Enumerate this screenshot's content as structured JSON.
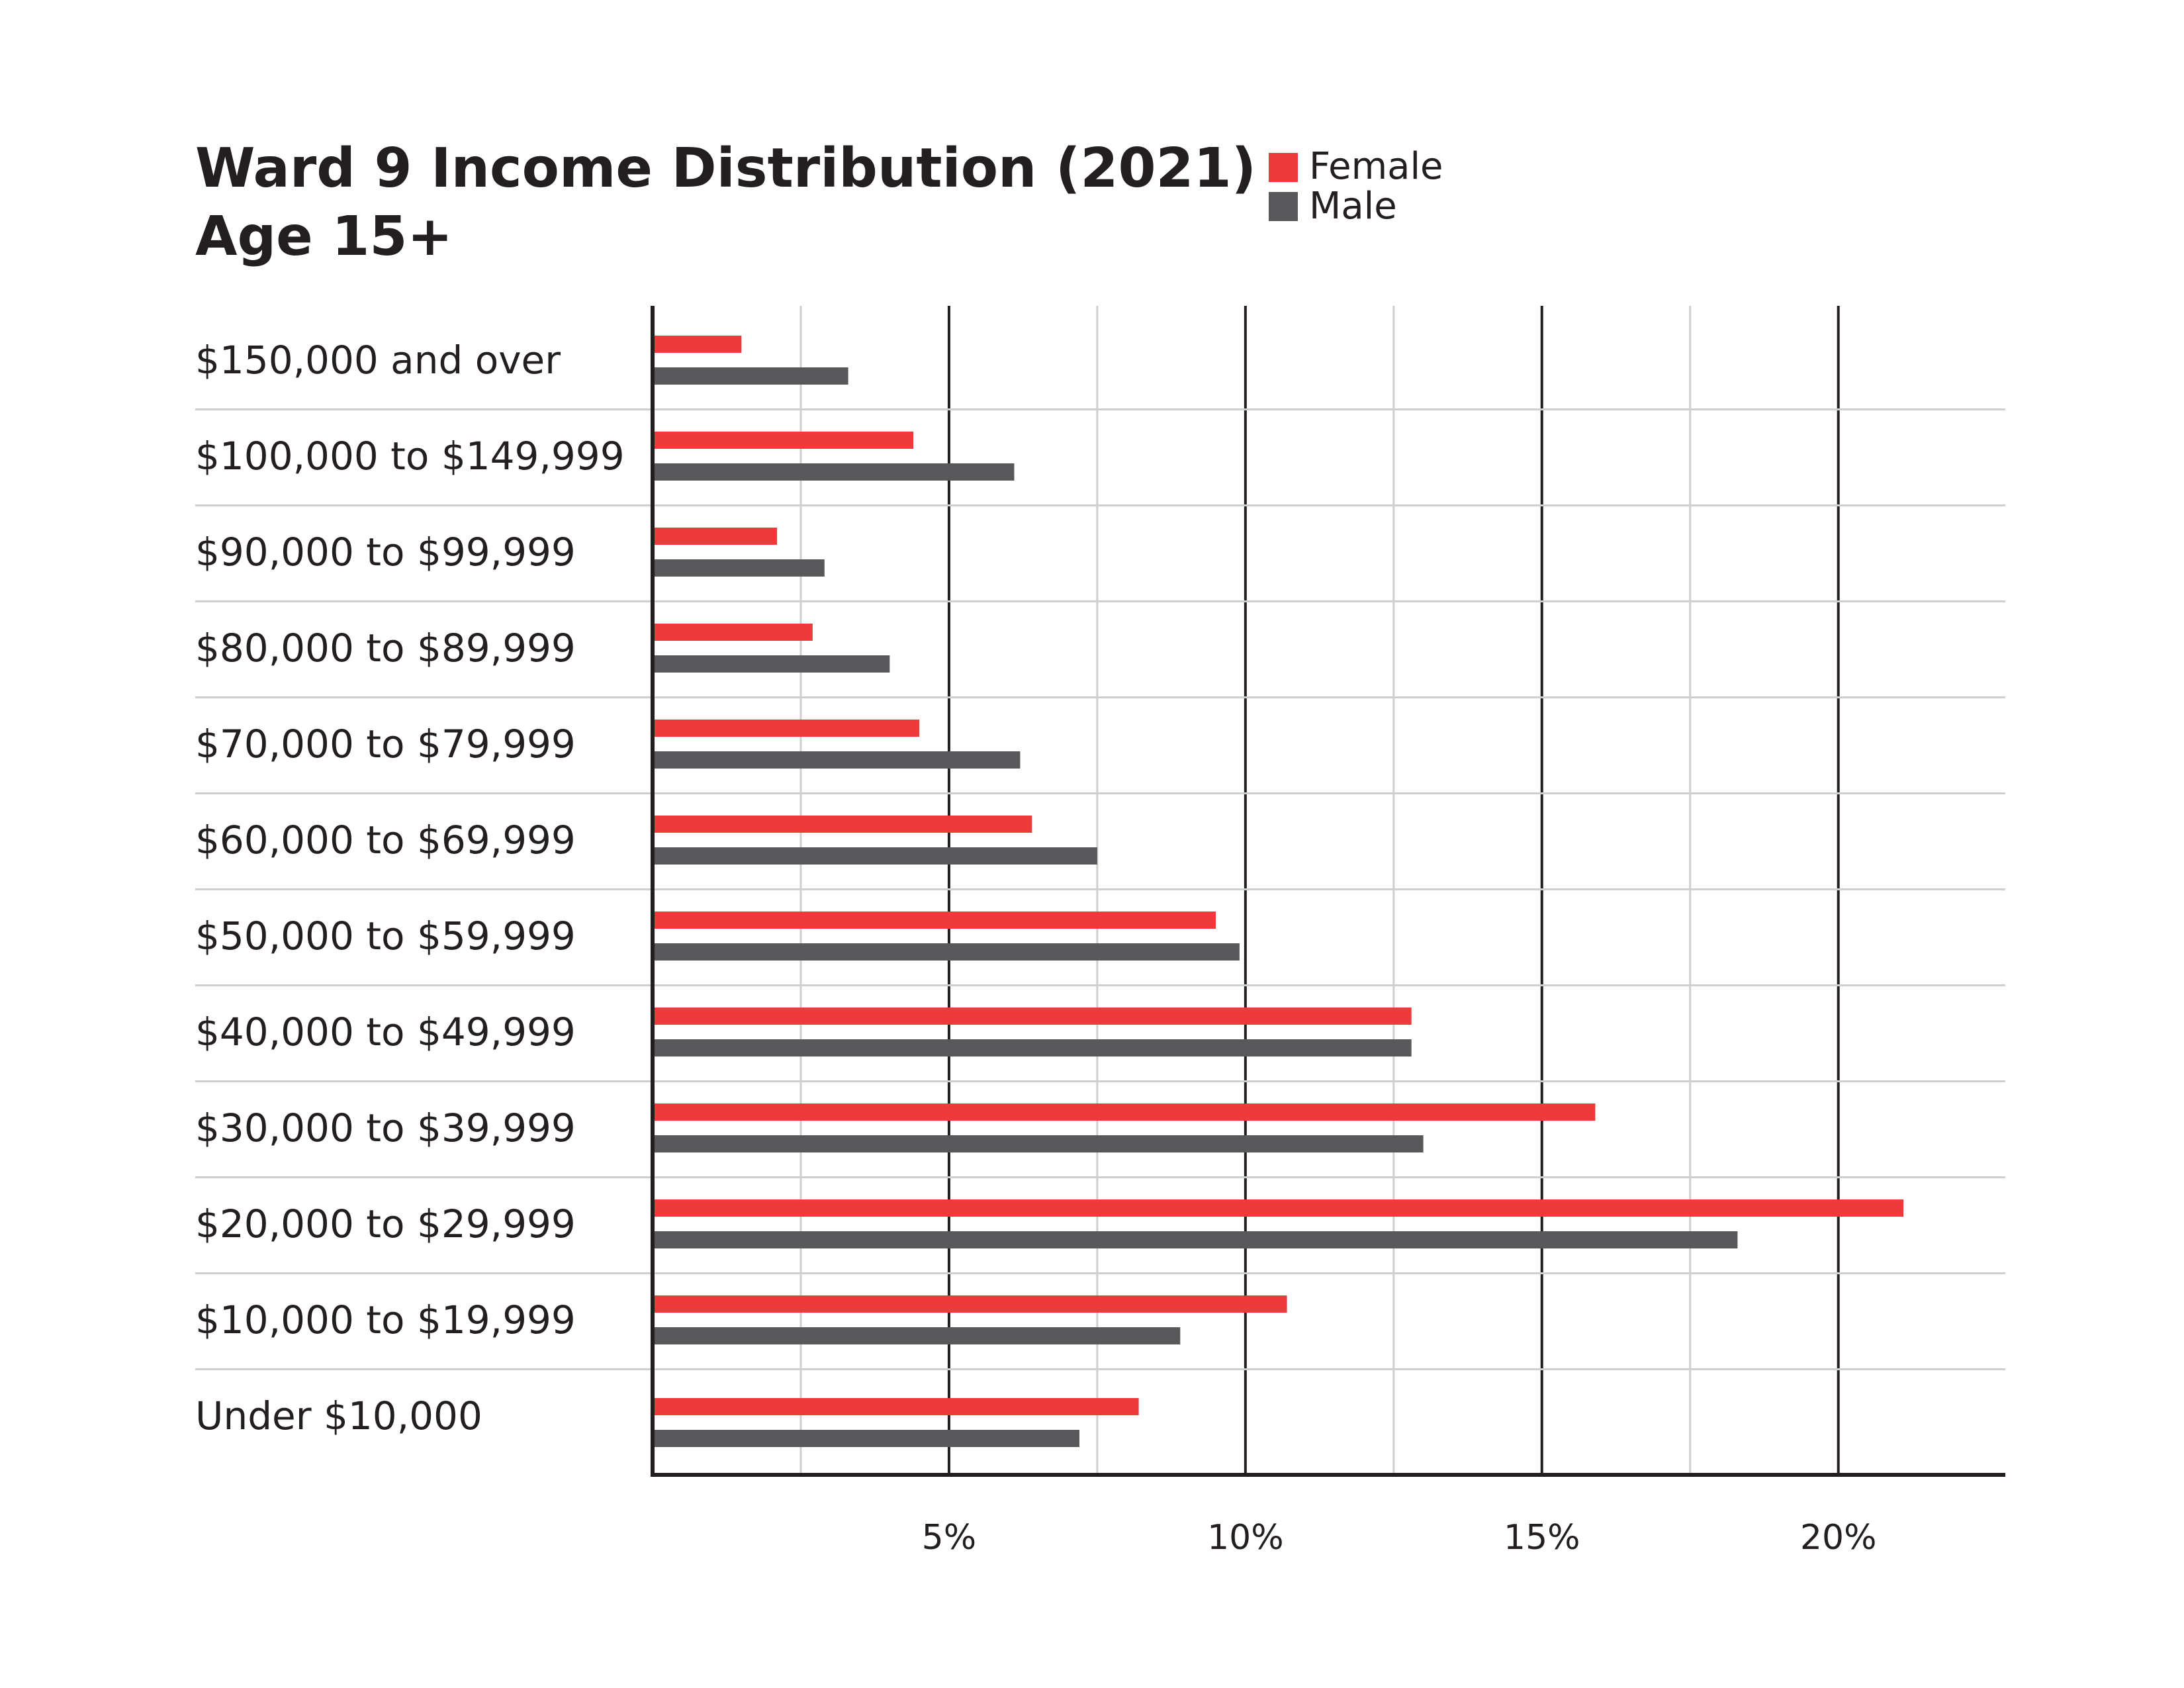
{
  "chart_data": {
    "type": "bar",
    "orientation": "horizontal",
    "title": "Ward 9 Income Distribution (2021)",
    "subtitle": "Age 15+",
    "categories": [
      "$150,000 and over",
      "$100,000 to $149,999",
      "$90,000 to $99,999",
      "$80,000 to $89,999",
      "$70,000 to $79,999",
      "$60,000 to $69,999",
      "$50,000 to $59,999",
      "$40,000 to $49,999",
      "$30,000 to $39,999",
      "$20,000 to $29,999",
      "$10,000 to $19,999",
      "Under $10,000"
    ],
    "series": [
      {
        "name": "Female",
        "color": "#ee3a3a",
        "values": [
          1.5,
          4.4,
          2.1,
          2.7,
          4.5,
          6.4,
          9.5,
          12.8,
          15.9,
          21.1,
          10.7,
          8.2
        ]
      },
      {
        "name": "Male",
        "color": "#58585a",
        "values": [
          3.3,
          6.1,
          2.9,
          4.0,
          6.2,
          7.5,
          9.9,
          12.8,
          13.0,
          18.3,
          8.9,
          7.2
        ]
      }
    ],
    "xlim": [
      0,
      21.7
    ],
    "xticks": [
      5,
      10,
      15,
      20
    ],
    "xtick_labels": [
      "5%",
      "10%",
      "15%",
      "20%"
    ],
    "minor_gridlines": [
      2.5,
      7.5,
      12.5,
      17.5
    ],
    "xlabel": "",
    "ylabel": "",
    "legend": {
      "position": "top",
      "entries": [
        "Female",
        "Male"
      ]
    },
    "grid": true
  }
}
